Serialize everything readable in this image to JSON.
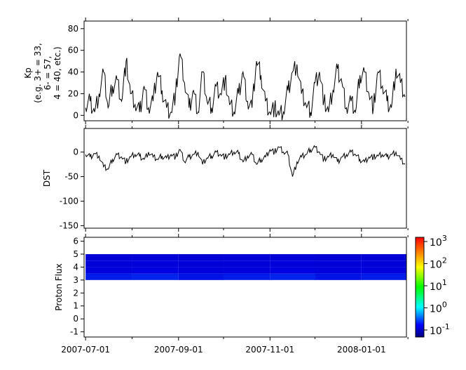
{
  "chart_data": [
    {
      "type": "line",
      "ylabel_lines": [
        "Kp",
        "(e.g. 3+ = 33,",
        "6- = 57,",
        "4 = 40, etc.)"
      ],
      "ylim": [
        -5,
        87
      ],
      "yticks": [
        0,
        20,
        40,
        60,
        80
      ],
      "x": [
        "2007-07-01",
        "2007-07-04",
        "2007-07-07",
        "2007-07-10",
        "2007-07-13",
        "2007-07-16",
        "2007-07-19",
        "2007-07-22",
        "2007-07-25",
        "2007-07-28",
        "2007-07-31",
        "2007-08-03",
        "2007-08-06",
        "2007-08-09",
        "2007-08-12",
        "2007-08-15",
        "2007-08-18",
        "2007-08-21",
        "2007-08-24",
        "2007-08-27",
        "2007-08-30",
        "2007-09-02",
        "2007-09-05",
        "2007-09-08",
        "2007-09-11",
        "2007-09-14",
        "2007-09-17",
        "2007-09-20",
        "2007-09-23",
        "2007-09-26",
        "2007-09-29",
        "2007-10-02",
        "2007-10-05",
        "2007-10-08",
        "2007-10-11",
        "2007-10-14",
        "2007-10-17",
        "2007-10-20",
        "2007-10-23",
        "2007-10-26",
        "2007-10-29",
        "2007-11-01",
        "2007-11-04",
        "2007-11-07",
        "2007-11-10",
        "2007-11-13",
        "2007-11-16",
        "2007-11-19",
        "2007-11-22",
        "2007-11-25",
        "2007-11-28",
        "2007-12-01",
        "2007-12-04",
        "2007-12-07",
        "2007-12-10",
        "2007-12-13",
        "2007-12-16",
        "2007-12-19",
        "2007-12-22",
        "2007-12-25",
        "2007-12-28",
        "2007-12-31",
        "2008-01-03",
        "2008-01-06",
        "2008-01-09",
        "2008-01-12",
        "2008-01-15",
        "2008-01-18",
        "2008-01-21",
        "2008-01-24",
        "2008-01-27",
        "2008-01-30"
      ],
      "y": [
        7,
        13,
        3,
        20,
        40,
        7,
        27,
        33,
        13,
        50,
        20,
        10,
        3,
        27,
        7,
        13,
        40,
        23,
        7,
        3,
        20,
        57,
        30,
        7,
        23,
        3,
        40,
        13,
        7,
        27,
        20,
        33,
        10,
        3,
        20,
        40,
        13,
        7,
        50,
        37,
        13,
        3,
        7,
        0,
        3,
        23,
        40,
        47,
        20,
        10,
        3,
        30,
        40,
        13,
        3,
        23,
        43,
        30,
        7,
        13,
        3,
        37,
        40,
        20,
        7,
        40,
        27,
        13,
        7,
        43,
        30,
        17
      ]
    },
    {
      "type": "line",
      "ylabel": "DST",
      "ylim": [
        -155,
        48
      ],
      "yticks": [
        0,
        -50,
        -100,
        -150
      ],
      "y": [
        -5,
        -10,
        -3,
        -8,
        -30,
        -35,
        -15,
        -5,
        -10,
        -20,
        -10,
        -5,
        -8,
        -15,
        0,
        -10,
        -15,
        -8,
        -12,
        -5,
        -10,
        5,
        -20,
        -10,
        -5,
        0,
        -25,
        -12,
        -8,
        0,
        -5,
        -10,
        -5,
        0,
        -3,
        -20,
        -8,
        -5,
        -25,
        -15,
        -10,
        5,
        0,
        10,
        0,
        -5,
        -50,
        -20,
        -10,
        -5,
        5,
        10,
        0,
        -15,
        -10,
        -5,
        -20,
        -10,
        -5,
        0,
        -5,
        -15,
        -20,
        -10,
        -10,
        -8,
        -5,
        -10,
        -5,
        0,
        -15,
        -25
      ]
    },
    {
      "type": "heatmap",
      "ylabel": "Proton Flux",
      "ylim": [
        -1.4,
        6.3
      ],
      "yticks": [
        -1,
        0,
        1,
        2,
        3,
        4,
        5,
        6
      ],
      "x_months": [
        "2007-07",
        "2007-08",
        "2007-09",
        "2007-10",
        "2007-11",
        "2007-12",
        "2008-01"
      ],
      "y_bins": [
        3,
        3.5,
        4,
        4.5,
        5
      ],
      "values": [
        [
          0.35,
          0.4,
          0.3,
          0.35,
          0.4,
          0.3,
          0.35
        ],
        [
          0.2,
          0.22,
          0.18,
          0.2,
          0.22,
          0.18,
          0.2
        ],
        [
          0.14,
          0.15,
          0.13,
          0.14,
          0.15,
          0.13,
          0.14
        ],
        [
          0.12,
          0.12,
          0.11,
          0.12,
          0.12,
          0.11,
          0.12
        ]
      ],
      "colorbar": {
        "scale": "log",
        "range": [
          0.05,
          1000
        ],
        "ticks": [
          "10",
          "10",
          "10",
          "10",
          "10"
        ],
        "exponents": [
          "-1",
          "0",
          "1",
          "2",
          "3"
        ],
        "colormap": "rainbow"
      }
    }
  ],
  "xaxis": {
    "range": [
      "2007-06-30",
      "2008-01-31"
    ],
    "tick_labels": [
      "2007-07-01",
      "2007-09-01",
      "2007-11-01",
      "2008-01-01"
    ]
  }
}
